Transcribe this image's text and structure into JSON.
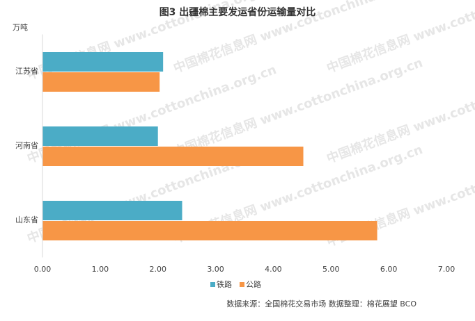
{
  "chart_data": {
    "type": "hbar",
    "title": "图3 出疆棉主要发运省份运输量对比",
    "y_unit_label": "万吨",
    "categories": [
      "江苏省",
      "河南省",
      "山东省"
    ],
    "series": [
      {
        "name": "铁路",
        "color": "#4bacc6",
        "values": [
          2.09,
          2.0,
          2.42
        ]
      },
      {
        "name": "公路",
        "color": "#f79646",
        "values": [
          2.03,
          4.52,
          5.8
        ]
      }
    ],
    "xlim": [
      0,
      7
    ],
    "xticks": [
      {
        "value": 0,
        "label": "0.00"
      },
      {
        "value": 1,
        "label": "1.00"
      },
      {
        "value": 2,
        "label": "2.00"
      },
      {
        "value": 3,
        "label": "3.00"
      },
      {
        "value": 4,
        "label": "4.00"
      },
      {
        "value": 5,
        "label": "5.00"
      },
      {
        "value": 6,
        "label": "6.00"
      },
      {
        "value": 7,
        "label": "7.00"
      }
    ],
    "grid": false,
    "legend": "bottom",
    "source": "数据来源：全国棉花交易市场    数据整理：棉花展望 BCO",
    "watermark": "中国棉花信息网 www.cottonchina.org.cn"
  }
}
